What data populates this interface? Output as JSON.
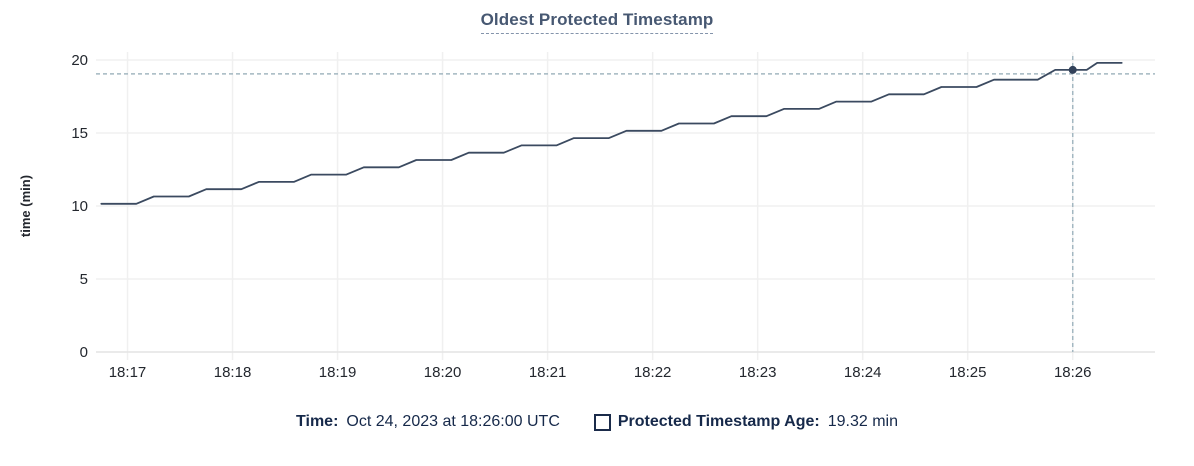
{
  "title": "Oldest Protected Timestamp",
  "colors": {
    "title": "#475872",
    "line": "#3b4a60",
    "dot": "#33425a",
    "crosshair": "#a3b7c1",
    "grid": "#f0f0f0",
    "axis_line": "#e4e4e4",
    "tick_label": "#23272e",
    "footer_text": "#16294a",
    "background": "#ffffff"
  },
  "chart_data": {
    "type": "line",
    "title": "Oldest Protected Timestamp",
    "xlabel": "",
    "ylabel": "time (min)",
    "ylim": [
      0,
      20
    ],
    "yticks": [
      0,
      5,
      10,
      15,
      20
    ],
    "xticks": [
      "18:17",
      "18:18",
      "18:19",
      "18:20",
      "18:21",
      "18:22",
      "18:23",
      "18:24",
      "18:25",
      "18:26"
    ],
    "x_domain": [
      "18:16:42",
      "18:26:47"
    ],
    "grid": true,
    "legend_position": "bottom",
    "series": [
      {
        "name": "Protected Timestamp Age",
        "unit": "min",
        "points": [
          [
            "18:16:45",
            10.15
          ],
          [
            "18:17:05",
            10.15
          ],
          [
            "18:17:15",
            10.65
          ],
          [
            "18:17:35",
            10.65
          ],
          [
            "18:17:45",
            11.15
          ],
          [
            "18:18:05",
            11.15
          ],
          [
            "18:18:15",
            11.65
          ],
          [
            "18:18:35",
            11.65
          ],
          [
            "18:18:45",
            12.15
          ],
          [
            "18:19:05",
            12.15
          ],
          [
            "18:19:15",
            12.65
          ],
          [
            "18:19:35",
            12.65
          ],
          [
            "18:19:45",
            13.15
          ],
          [
            "18:20:05",
            13.15
          ],
          [
            "18:20:15",
            13.65
          ],
          [
            "18:20:35",
            13.65
          ],
          [
            "18:20:45",
            14.15
          ],
          [
            "18:21:05",
            14.15
          ],
          [
            "18:21:15",
            14.65
          ],
          [
            "18:21:35",
            14.65
          ],
          [
            "18:21:45",
            15.15
          ],
          [
            "18:22:05",
            15.15
          ],
          [
            "18:22:15",
            15.65
          ],
          [
            "18:22:35",
            15.65
          ],
          [
            "18:22:45",
            16.15
          ],
          [
            "18:23:05",
            16.15
          ],
          [
            "18:23:15",
            16.65
          ],
          [
            "18:23:35",
            16.65
          ],
          [
            "18:23:45",
            17.15
          ],
          [
            "18:24:05",
            17.15
          ],
          [
            "18:24:15",
            17.65
          ],
          [
            "18:24:35",
            17.65
          ],
          [
            "18:24:45",
            18.15
          ],
          [
            "18:25:05",
            18.15
          ],
          [
            "18:25:15",
            18.65
          ],
          [
            "18:25:40",
            18.65
          ],
          [
            "18:25:50",
            19.32
          ],
          [
            "18:26:08",
            19.32
          ],
          [
            "18:26:14",
            19.8
          ],
          [
            "18:26:28",
            19.8
          ]
        ]
      }
    ],
    "hover": {
      "time": "18:26:00",
      "value": 19.32,
      "hline_value": 19.05
    }
  },
  "footer": {
    "time_label": "Time:",
    "time_value": "Oct 24, 2023 at 18:26:00 UTC",
    "series_label": "Protected Timestamp Age:",
    "series_value": "19.32 min"
  }
}
